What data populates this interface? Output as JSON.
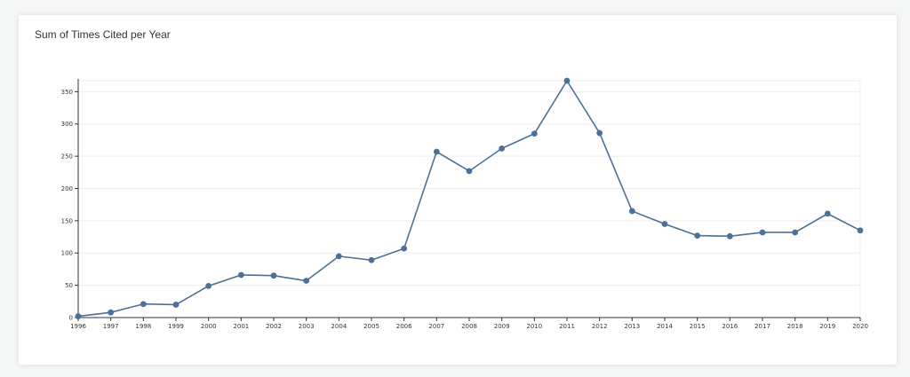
{
  "card": {
    "title": "Sum of Times Cited per Year"
  },
  "chart_data": {
    "type": "line",
    "title": "Sum of Times Cited per Year",
    "xlabel": "",
    "ylabel": "",
    "x": [
      "1996",
      "1997",
      "1998",
      "1999",
      "2000",
      "2001",
      "2002",
      "2003",
      "2004",
      "2005",
      "2006",
      "2007",
      "2008",
      "2009",
      "2010",
      "2011",
      "2012",
      "2013",
      "2014",
      "2015",
      "2016",
      "2017",
      "2018",
      "2019",
      "2020"
    ],
    "values": [
      2,
      8,
      21,
      20,
      49,
      66,
      65,
      57,
      95,
      89,
      107,
      257,
      227,
      262,
      285,
      367,
      286,
      165,
      145,
      127,
      126,
      132,
      132,
      161,
      135
    ],
    "ylim": [
      0,
      367
    ],
    "yticks": [
      0,
      50,
      100,
      150,
      200,
      250,
      300,
      350
    ],
    "grid": true,
    "legend": "none",
    "colors": {
      "line": "#4b7197",
      "marker": "#4b7197",
      "grid": "#eeeeee",
      "axis": "#333333"
    }
  }
}
